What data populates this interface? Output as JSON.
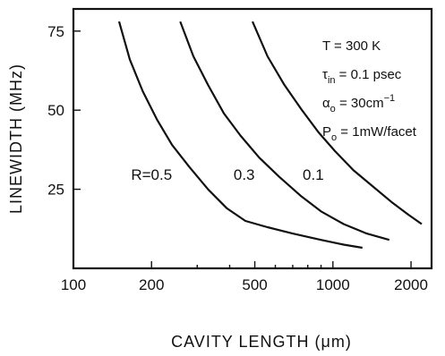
{
  "chart_data": {
    "type": "line",
    "xlabel": "CAVITY LENGTH (μm)",
    "ylabel": "LINEWIDTH (MHz)",
    "xscale": "log",
    "xlim": [
      100,
      2400
    ],
    "ylim": [
      0,
      82
    ],
    "xticks": [
      100,
      200,
      500,
      1000,
      2000
    ],
    "xtick_labels": [
      "100",
      "200",
      "500",
      "1000",
      "2000"
    ],
    "yticks": [
      25,
      50,
      75
    ],
    "ytick_labels": [
      "25",
      "50",
      "75"
    ],
    "grid": false,
    "series": [
      {
        "name": "R=0.5",
        "x": [
          150,
          165,
          185,
          210,
          240,
          280,
          330,
          390,
          460,
          560,
          700,
          900,
          1100,
          1300
        ],
        "y": [
          78,
          66,
          56,
          47,
          39,
          32,
          25,
          19,
          15,
          13,
          11,
          9,
          7.5,
          6.5
        ]
      },
      {
        "name": "0.3",
        "x": [
          258,
          290,
          330,
          380,
          440,
          520,
          620,
          750,
          900,
          1100,
          1350,
          1650
        ],
        "y": [
          78,
          67,
          58,
          49,
          42,
          35,
          29,
          23,
          18,
          14,
          11,
          9
        ]
      },
      {
        "name": "0.1",
        "x": [
          490,
          560,
          650,
          760,
          880,
          1020,
          1200,
          1420,
          1680,
          1950,
          2200
        ],
        "y": [
          78,
          67,
          58,
          50,
          43,
          37,
          31,
          26,
          21,
          17,
          14
        ]
      }
    ],
    "curve_labels": [
      {
        "text": "R=0.5",
        "x": 200,
        "y": 28
      },
      {
        "text": "0.3",
        "x": 455,
        "y": 28
      },
      {
        "text": "0.1",
        "x": 840,
        "y": 28
      }
    ],
    "annotations": [
      {
        "text": "T = 300 K"
      },
      {
        "text": "τ",
        "sub": "in",
        "rest": " = 0.1 psec"
      },
      {
        "text": "α",
        "sub": "o",
        "rest": " = 30cm",
        "sup": "−1"
      },
      {
        "text": "P",
        "sub": "o",
        "rest": " = 1mW/facet"
      }
    ]
  }
}
